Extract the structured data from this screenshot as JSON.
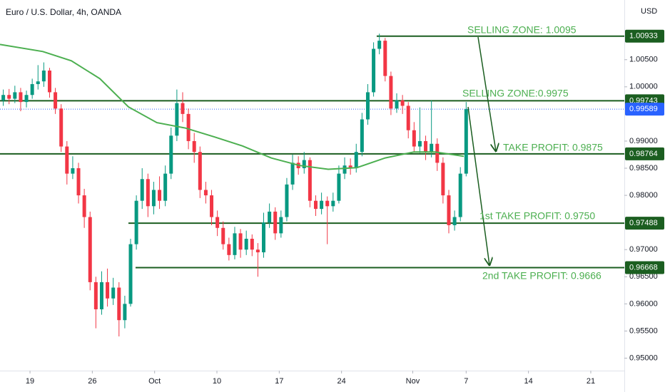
{
  "chart_data": {
    "type": "candlestick",
    "title": "Euro / U.S. Dollar, 4h, OANDA",
    "y_axis_label": "USD",
    "xlim": [
      15.63,
      85.77
    ],
    "ylim": [
      0.9477,
      1.016
    ],
    "xticks": [
      19,
      26,
      {
        "value": 33,
        "label": "Oct"
      },
      {
        "value": 40,
        "label": "10"
      },
      {
        "value": 47,
        "label": "17"
      },
      {
        "value": 54,
        "label": "24"
      },
      {
        "value": 62,
        "label": "Nov"
      },
      {
        "value": 68,
        "label": "7"
      },
      {
        "value": 75,
        "label": "14"
      },
      {
        "value": 82,
        "label": "21"
      }
    ],
    "yticks": [
      {
        "value": 1.005,
        "label": "1.00500"
      },
      {
        "value": 1.0,
        "label": "1.00000"
      },
      {
        "value": 0.99,
        "label": "0.99000"
      },
      {
        "value": 0.985,
        "label": "0.98500"
      },
      {
        "value": 0.98,
        "label": "0.98000"
      },
      {
        "value": 0.97,
        "label": "0.97000"
      },
      {
        "value": 0.965,
        "label": "0.96500"
      },
      {
        "value": 0.96,
        "label": "0.96000"
      },
      {
        "value": 0.955,
        "label": "0.95500"
      },
      {
        "value": 0.95,
        "label": "0.95000"
      }
    ],
    "grid": false,
    "up_color": "#089981",
    "down_color": "#f23645",
    "candles": {
      "x": [
        16,
        16.65,
        17.3,
        17.95,
        18.6,
        19.25,
        19.9,
        20.55,
        21.2,
        21.85,
        22.5,
        23.15,
        23.8,
        24.45,
        25.1,
        25.75,
        26.4,
        27.05,
        27.7,
        28.35,
        29,
        29.65,
        30.3,
        30.95,
        31.6,
        32.25,
        32.9,
        33.55,
        34.2,
        34.85,
        35.5,
        36.15,
        36.8,
        37.45,
        38.1,
        38.75,
        39.4,
        40.05,
        40.7,
        41.35,
        42,
        42.65,
        43.3,
        43.95,
        44.6,
        45.25,
        45.9,
        46.55,
        47.2,
        47.85,
        48.5,
        49.15,
        49.8,
        50.45,
        51.1,
        51.75,
        52.4,
        53.05,
        53.7,
        54.35,
        55,
        55.65,
        56.3,
        56.95,
        57.6,
        58.25,
        58.9,
        59.55,
        60.2,
        60.85,
        61.5,
        62.15,
        62.8,
        63.45,
        64.1,
        64.75,
        65.4,
        66.05,
        66.7,
        67.35,
        68
      ],
      "open": [
        0.9975,
        0.9985,
        0.9978,
        0.999,
        0.9972,
        0.9985,
        1.0005,
        1.001,
        1.003,
        0.999,
        0.996,
        0.989,
        0.984,
        0.985,
        0.98,
        0.976,
        0.964,
        0.959,
        0.964,
        0.961,
        0.963,
        0.957,
        0.96,
        0.971,
        0.979,
        0.983,
        0.978,
        0.981,
        0.979,
        0.984,
        0.991,
        0.997,
        0.995,
        0.99,
        0.988,
        0.981,
        0.98,
        0.976,
        0.974,
        0.971,
        0.969,
        0.973,
        0.97,
        0.972,
        0.97,
        0.9695,
        0.975,
        0.977,
        0.973,
        0.976,
        0.982,
        0.986,
        0.985,
        0.9865,
        0.979,
        0.9775,
        0.979,
        0.978,
        0.979,
        0.984,
        0.9855,
        0.985,
        0.988,
        0.994,
        0.999,
        1.007,
        1.0085,
        1.002,
        0.996,
        0.9975,
        0.9965,
        0.992,
        0.989,
        0.99,
        0.988,
        0.9895,
        0.986,
        0.98,
        0.9745,
        0.976,
        0.984
      ],
      "high": [
        0.9995,
        0.9996,
        1.0002,
        0.9998,
        0.9993,
        1.0015,
        1.004,
        1.0045,
        1.0035,
        0.9998,
        0.9968,
        0.99,
        0.9872,
        0.986,
        0.9812,
        0.977,
        0.965,
        0.966,
        0.9665,
        0.9648,
        0.964,
        0.9615,
        0.972,
        0.98,
        0.985,
        0.984,
        0.9825,
        0.9835,
        0.9855,
        0.9925,
        0.9995,
        0.999,
        0.996,
        0.9915,
        0.989,
        0.9825,
        0.981,
        0.9772,
        0.9752,
        0.9722,
        0.9742,
        0.9738,
        0.9735,
        0.9728,
        0.9712,
        0.9768,
        0.9785,
        0.9778,
        0.9772,
        0.9832,
        0.9875,
        0.9872,
        0.988,
        0.987,
        0.98,
        0.9805,
        0.9798,
        0.9805,
        0.9855,
        0.987,
        0.9868,
        0.9895,
        0.9952,
        1.0005,
        1.0082,
        1.0098,
        1.009,
        1.0028,
        0.9988,
        0.9985,
        0.9972,
        0.9935,
        0.9962,
        0.991,
        0.9975,
        0.9905,
        0.987,
        0.981,
        0.9772,
        0.9852,
        0.9972
      ],
      "low": [
        0.9965,
        0.9968,
        0.997,
        0.9955,
        0.9962,
        0.9978,
        0.9995,
        1.0,
        0.998,
        0.995,
        0.988,
        0.982,
        0.983,
        0.9785,
        0.974,
        0.9625,
        0.9555,
        0.958,
        0.9595,
        0.9598,
        0.954,
        0.9555,
        0.9595,
        0.97,
        0.9775,
        0.976,
        0.9765,
        0.9775,
        0.978,
        0.983,
        0.99,
        0.9935,
        0.9885,
        0.986,
        0.9795,
        0.9785,
        0.9745,
        0.9725,
        0.97,
        0.968,
        0.9682,
        0.9685,
        0.969,
        0.9688,
        0.965,
        0.9685,
        0.974,
        0.9718,
        0.9722,
        0.9752,
        0.981,
        0.9838,
        0.984,
        0.9778,
        0.9762,
        0.9765,
        0.971,
        0.977,
        0.9785,
        0.983,
        0.9838,
        0.9842,
        0.9872,
        0.993,
        0.9982,
        1.006,
        1.001,
        0.9948,
        0.9952,
        0.995,
        0.9905,
        0.988,
        0.9878,
        0.9865,
        0.987,
        0.9845,
        0.9785,
        0.973,
        0.9735,
        0.9752,
        0.9835
      ],
      "close": [
        0.9985,
        0.9978,
        0.999,
        0.9972,
        0.9985,
        1.0005,
        1.001,
        1.003,
        0.999,
        0.996,
        0.989,
        0.984,
        0.985,
        0.98,
        0.976,
        0.964,
        0.959,
        0.964,
        0.961,
        0.963,
        0.957,
        0.96,
        0.971,
        0.979,
        0.983,
        0.978,
        0.981,
        0.979,
        0.984,
        0.991,
        0.997,
        0.995,
        0.99,
        0.988,
        0.981,
        0.98,
        0.976,
        0.974,
        0.971,
        0.969,
        0.973,
        0.97,
        0.972,
        0.97,
        0.9695,
        0.975,
        0.977,
        0.973,
        0.976,
        0.982,
        0.986,
        0.985,
        0.9865,
        0.979,
        0.9775,
        0.979,
        0.978,
        0.979,
        0.984,
        0.9855,
        0.985,
        0.988,
        0.994,
        0.999,
        1.007,
        1.0085,
        1.002,
        0.996,
        0.9975,
        0.9965,
        0.992,
        0.989,
        0.99,
        0.988,
        0.9895,
        0.986,
        0.98,
        0.9745,
        0.976,
        0.984,
        0.99589
      ]
    },
    "moving_average": {
      "color": "#4caf50",
      "x": [
        15.63,
        20.44,
        23.65,
        26.85,
        30.06,
        33.26,
        36.47,
        39.68,
        42.88,
        46.09,
        49.3,
        52.5,
        55.71,
        58.91,
        62.12,
        64.52,
        66.93,
        67.73
      ],
      "values": [
        1.0078,
        1.0065,
        1.0048,
        1.0015,
        0.9963,
        0.9934,
        0.9924,
        0.9908,
        0.9891,
        0.9869,
        0.9855,
        0.9848,
        0.9851,
        0.9869,
        0.988,
        0.988,
        0.9874,
        0.9872
      ]
    },
    "level_color": "#1b5e20",
    "last_price_color": "#2962ff",
    "levels": [
      {
        "value": 1.00933,
        "from": 57.95
      },
      {
        "value": 0.99743,
        "from": 15.63
      },
      {
        "value": 0.98764,
        "from": 15.63
      },
      {
        "value": 0.97488,
        "from": 30.06
      },
      {
        "value": 0.96668,
        "from": 30.86
      }
    ],
    "annotation_color": "#4caf50",
    "annotations": [
      "SELLING ZONE: 1.0095",
      "SELLING ZONE:0.9975",
      "TAKE PROFIT: 0.9875",
      "1st TAKE PROFIT: 0.9750",
      "2nd TAKE PROFIT: 0.9666"
    ]
  }
}
